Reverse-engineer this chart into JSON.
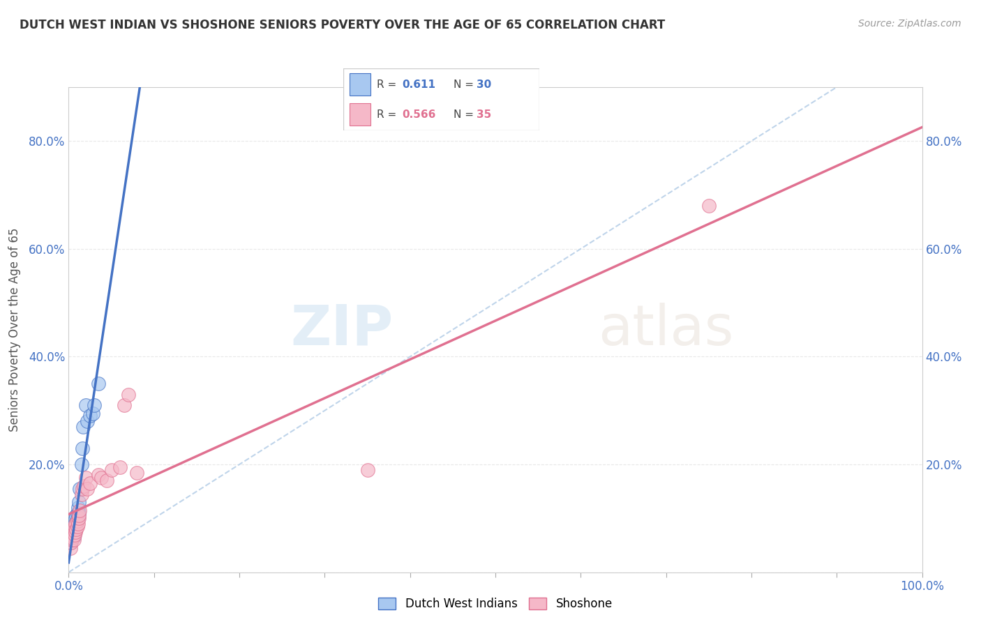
{
  "title": "DUTCH WEST INDIAN VS SHOSHONE SENIORS POVERTY OVER THE AGE OF 65 CORRELATION CHART",
  "source": "Source: ZipAtlas.com",
  "ylabel": "Seniors Poverty Over the Age of 65",
  "xlim": [
    0.0,
    1.0
  ],
  "ylim": [
    0.0,
    0.9
  ],
  "color_blue": "#A8C8F0",
  "color_pink": "#F5B8C8",
  "color_line_blue": "#4472C4",
  "color_line_pink": "#E07090",
  "color_dashed": "#B8D0E8",
  "watermark_zip": "ZIP",
  "watermark_atlas": "atlas",
  "dutch_x": [
    0.002,
    0.003,
    0.004,
    0.004,
    0.005,
    0.005,
    0.006,
    0.006,
    0.007,
    0.007,
    0.008,
    0.008,
    0.009,
    0.009,
    0.01,
    0.01,
    0.011,
    0.011,
    0.012,
    0.012,
    0.013,
    0.015,
    0.016,
    0.017,
    0.02,
    0.022,
    0.025,
    0.028,
    0.03,
    0.035
  ],
  "dutch_y": [
    0.055,
    0.06,
    0.068,
    0.075,
    0.07,
    0.08,
    0.065,
    0.085,
    0.075,
    0.09,
    0.08,
    0.1,
    0.09,
    0.105,
    0.095,
    0.11,
    0.1,
    0.12,
    0.11,
    0.13,
    0.155,
    0.2,
    0.23,
    0.27,
    0.31,
    0.28,
    0.29,
    0.295,
    0.31,
    0.35
  ],
  "shoshone_x": [
    0.002,
    0.003,
    0.004,
    0.004,
    0.005,
    0.005,
    0.006,
    0.006,
    0.007,
    0.007,
    0.008,
    0.008,
    0.009,
    0.01,
    0.01,
    0.011,
    0.012,
    0.012,
    0.013,
    0.015,
    0.016,
    0.018,
    0.02,
    0.022,
    0.025,
    0.035,
    0.038,
    0.045,
    0.05,
    0.06,
    0.065,
    0.07,
    0.08,
    0.35,
    0.75
  ],
  "shoshone_y": [
    0.045,
    0.055,
    0.06,
    0.07,
    0.065,
    0.075,
    0.06,
    0.08,
    0.07,
    0.085,
    0.075,
    0.09,
    0.08,
    0.085,
    0.095,
    0.09,
    0.1,
    0.105,
    0.115,
    0.145,
    0.155,
    0.16,
    0.175,
    0.155,
    0.165,
    0.18,
    0.175,
    0.17,
    0.19,
    0.195,
    0.31,
    0.33,
    0.185,
    0.19,
    0.68
  ],
  "background_color": "#FFFFFF",
  "grid_color": "#E8E8E8"
}
